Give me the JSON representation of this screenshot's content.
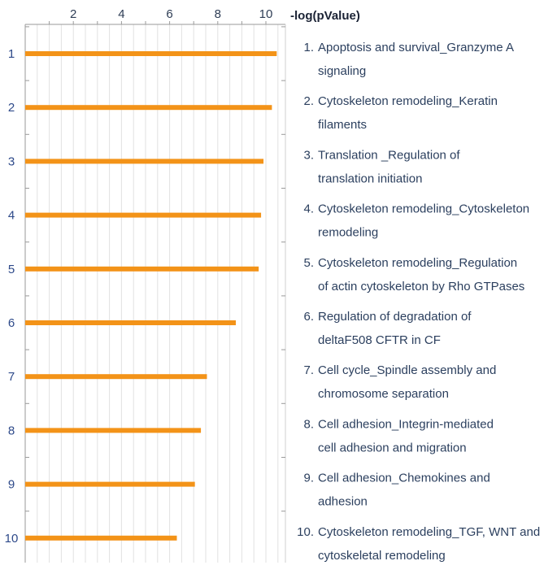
{
  "chart_data": {
    "type": "bar",
    "orientation": "horizontal",
    "xlabel": "-log(pValue)",
    "xlim": [
      0,
      10.5
    ],
    "xticks": [
      2,
      4,
      6,
      8,
      10
    ],
    "grid": true,
    "categories": [
      "1",
      "2",
      "3",
      "4",
      "5",
      "6",
      "7",
      "8",
      "9",
      "10"
    ],
    "values": [
      10.45,
      10.25,
      9.9,
      9.8,
      9.7,
      8.75,
      7.55,
      7.3,
      7.05,
      6.3
    ],
    "bar_color": "#f39318",
    "legend": [
      [
        "1. Apoptosis and survival_Granzyme A",
        "signaling"
      ],
      [
        "2. Cytoskeleton remodeling_Keratin",
        "filaments"
      ],
      [
        "3. Translation _Regulation of",
        "translation initiation"
      ],
      [
        "4. Cytoskeleton remodeling_Cytoskeleton",
        "remodeling"
      ],
      [
        "5. Cytoskeleton remodeling_Regulation",
        "of actin cytoskeleton by Rho GTPases"
      ],
      [
        "6. Regulation of degradation of",
        "deltaF508 CFTR in CF"
      ],
      [
        "7. Cell cycle_Spindle assembly and",
        "chromosome separation"
      ],
      [
        "8. Cell adhesion_Integrin-mediated",
        "cell adhesion and migration"
      ],
      [
        "9. Cell adhesion_Chemokines and",
        "adhesion"
      ],
      [
        "10. Cytoskeleton remodeling_TGF, WNT and",
        "cytoskeletal remodeling"
      ]
    ]
  }
}
